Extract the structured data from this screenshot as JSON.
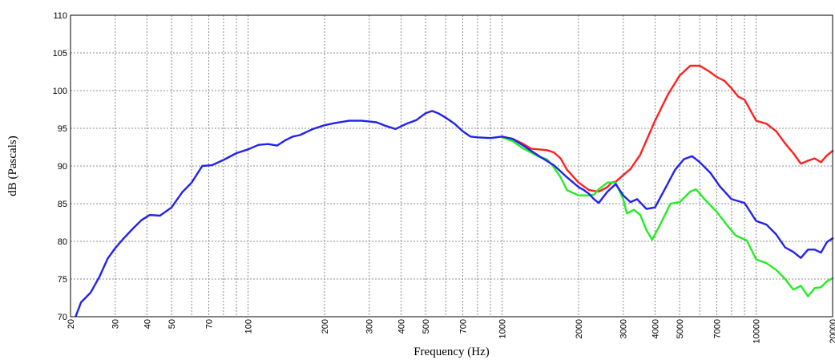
{
  "chart_data": {
    "type": "line",
    "xlabel": "Frequency (Hz)",
    "ylabel": "dB (Pascals)",
    "x_scale": "log",
    "xlim": [
      20,
      20000
    ],
    "ylim": [
      70,
      110
    ],
    "grid": true,
    "x_ticks": [
      20,
      30,
      40,
      50,
      70,
      100,
      200,
      300,
      400,
      500,
      700,
      1000,
      2000,
      3000,
      4000,
      5000,
      7000,
      10000,
      20000
    ],
    "x_minor_grid": [
      60,
      80,
      90,
      600,
      800,
      900,
      6000,
      8000,
      9000
    ],
    "y_ticks": [
      70,
      75,
      80,
      85,
      90,
      95,
      100,
      105,
      110
    ],
    "series": [
      {
        "color": "#ff2020",
        "points": [
          [
            1000,
            93.8
          ],
          [
            1100,
            93.6
          ],
          [
            1200,
            93
          ],
          [
            1300,
            92.3
          ],
          [
            1500,
            92.1
          ],
          [
            1600,
            91.8
          ],
          [
            1700,
            91
          ],
          [
            1800,
            89.5
          ],
          [
            2000,
            87.8
          ],
          [
            2200,
            86.8
          ],
          [
            2400,
            86.6
          ],
          [
            2600,
            87.2
          ],
          [
            2700,
            87.8
          ],
          [
            2800,
            87.9
          ],
          [
            3000,
            88.8
          ],
          [
            3200,
            89.6
          ],
          [
            3500,
            91.5
          ],
          [
            4000,
            96
          ],
          [
            4500,
            99.5
          ],
          [
            5000,
            102
          ],
          [
            5500,
            103.3
          ],
          [
            6000,
            103.3
          ],
          [
            6500,
            102.6
          ],
          [
            7000,
            101.8
          ],
          [
            7500,
            101.3
          ],
          [
            8000,
            100.3
          ],
          [
            8500,
            99.2
          ],
          [
            9000,
            98.8
          ],
          [
            10000,
            96
          ],
          [
            11000,
            95.6
          ],
          [
            12000,
            94.6
          ],
          [
            13000,
            93
          ],
          [
            14000,
            91.7
          ],
          [
            15000,
            90.3
          ],
          [
            16000,
            90.7
          ],
          [
            17000,
            91
          ],
          [
            18000,
            90.5
          ],
          [
            19000,
            91.4
          ],
          [
            20000,
            92
          ]
        ]
      },
      {
        "color": "#22ee22",
        "points": [
          [
            1000,
            93.8
          ],
          [
            1100,
            93.3
          ],
          [
            1200,
            92.4
          ],
          [
            1400,
            91.2
          ],
          [
            1500,
            90.9
          ],
          [
            1600,
            89.8
          ],
          [
            1700,
            88.5
          ],
          [
            1800,
            86.8
          ],
          [
            2000,
            86.1
          ],
          [
            2200,
            86.1
          ],
          [
            2300,
            86.2
          ],
          [
            2400,
            86.9
          ],
          [
            2600,
            87.8
          ],
          [
            2800,
            87.8
          ],
          [
            3000,
            85.6
          ],
          [
            3100,
            83.7
          ],
          [
            3300,
            84.2
          ],
          [
            3500,
            83.5
          ],
          [
            3700,
            81.5
          ],
          [
            3900,
            80.2
          ],
          [
            4200,
            82.3
          ],
          [
            4600,
            85
          ],
          [
            5000,
            85.2
          ],
          [
            5500,
            86.6
          ],
          [
            5800,
            86.9
          ],
          [
            6300,
            85.5
          ],
          [
            7000,
            83.9
          ],
          [
            7700,
            82.1
          ],
          [
            8300,
            80.8
          ],
          [
            9200,
            80.1
          ],
          [
            10000,
            77.6
          ],
          [
            11000,
            77.1
          ],
          [
            12000,
            76.2
          ],
          [
            13000,
            75
          ],
          [
            14000,
            73.6
          ],
          [
            15000,
            74.1
          ],
          [
            16000,
            72.7
          ],
          [
            17000,
            73.8
          ],
          [
            18000,
            73.9
          ],
          [
            19000,
            74.7
          ],
          [
            20000,
            75.1
          ]
        ]
      },
      {
        "color": "#2222ee",
        "points": [
          [
            21,
            70.1
          ],
          [
            22,
            71.9
          ],
          [
            24,
            73.2
          ],
          [
            26,
            75.3
          ],
          [
            28,
            77.7
          ],
          [
            30,
            79.1
          ],
          [
            32,
            80.2
          ],
          [
            35,
            81.6
          ],
          [
            38,
            82.8
          ],
          [
            41,
            83.5
          ],
          [
            45,
            83.4
          ],
          [
            50,
            84.5
          ],
          [
            55,
            86.5
          ],
          [
            60,
            87.8
          ],
          [
            66,
            90
          ],
          [
            72,
            90.1
          ],
          [
            80,
            90.8
          ],
          [
            90,
            91.7
          ],
          [
            100,
            92.2
          ],
          [
            110,
            92.8
          ],
          [
            120,
            92.9
          ],
          [
            130,
            92.7
          ],
          [
            140,
            93.4
          ],
          [
            150,
            93.9
          ],
          [
            160,
            94.1
          ],
          [
            180,
            94.9
          ],
          [
            200,
            95.4
          ],
          [
            220,
            95.7
          ],
          [
            250,
            96
          ],
          [
            280,
            96
          ],
          [
            320,
            95.8
          ],
          [
            350,
            95.3
          ],
          [
            380,
            94.9
          ],
          [
            420,
            95.6
          ],
          [
            460,
            96.1
          ],
          [
            500,
            97
          ],
          [
            530,
            97.3
          ],
          [
            560,
            97
          ],
          [
            600,
            96.4
          ],
          [
            650,
            95.6
          ],
          [
            700,
            94.6
          ],
          [
            750,
            93.9
          ],
          [
            800,
            93.8
          ],
          [
            900,
            93.7
          ],
          [
            1000,
            93.9
          ],
          [
            1100,
            93.6
          ],
          [
            1200,
            92.8
          ],
          [
            1400,
            91.3
          ],
          [
            1600,
            90.1
          ],
          [
            1800,
            88.5
          ],
          [
            2000,
            87.2
          ],
          [
            2100,
            86.8
          ],
          [
            2200,
            86.3
          ],
          [
            2300,
            85.6
          ],
          [
            2400,
            85.1
          ],
          [
            2600,
            86.6
          ],
          [
            2800,
            87.6
          ],
          [
            3000,
            86.1
          ],
          [
            3200,
            85.2
          ],
          [
            3400,
            85.6
          ],
          [
            3700,
            84.3
          ],
          [
            4000,
            84.5
          ],
          [
            4400,
            87.1
          ],
          [
            4800,
            89.5
          ],
          [
            5200,
            90.9
          ],
          [
            5600,
            91.3
          ],
          [
            6000,
            90.5
          ],
          [
            6600,
            89.1
          ],
          [
            7200,
            87.3
          ],
          [
            8000,
            85.6
          ],
          [
            9000,
            85.1
          ],
          [
            10000,
            82.7
          ],
          [
            11000,
            82.2
          ],
          [
            12000,
            80.9
          ],
          [
            13000,
            79.2
          ],
          [
            14000,
            78.6
          ],
          [
            15000,
            77.8
          ],
          [
            16000,
            78.9
          ],
          [
            17000,
            78.9
          ],
          [
            18000,
            78.5
          ],
          [
            19000,
            79.9
          ],
          [
            20000,
            80.4
          ]
        ]
      }
    ]
  }
}
